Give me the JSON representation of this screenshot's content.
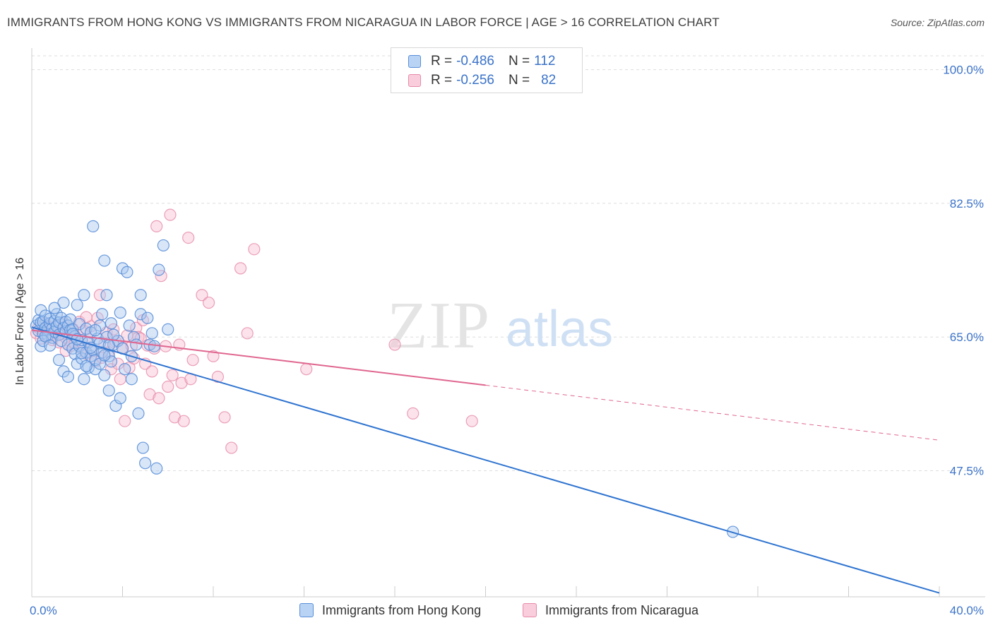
{
  "title": "IMMIGRANTS FROM HONG KONG VS IMMIGRANTS FROM NICARAGUA IN LABOR FORCE | AGE > 16 CORRELATION CHART",
  "source": "Source: ZipAtlas.com",
  "watermark": {
    "zip": "ZIP",
    "atlas": "atlas"
  },
  "colors": {
    "hong_kong_fill": "#a8c8f0",
    "hong_kong_stroke": "#5a8fd8",
    "hong_kong_line": "#2f74d0",
    "nicaragua_fill": "#f7bfd2",
    "nicaragua_stroke": "#e68aa9",
    "nicaragua_line": "#e06690",
    "axis_text": "#3b73c9",
    "grid": "#dddddd"
  },
  "legend": {
    "rows": [
      {
        "r_label": "R = ",
        "r_value": "-0.486",
        "n_label": "N = ",
        "n_value": "112"
      },
      {
        "r_label": "R = ",
        "r_value": "-0.256",
        "n_label": "N = ",
        "n_value": "82"
      }
    ]
  },
  "bottom_legend": {
    "hong_kong": "Immigrants from Hong Kong",
    "nicaragua": "Immigrants from Nicaragua"
  },
  "chart_data": {
    "type": "scatter",
    "title": "IMMIGRANTS FROM HONG KONG VS IMMIGRANTS FROM NICARAGUA IN LABOR FORCE | AGE > 16 CORRELATION CHART",
    "xlabel": "",
    "ylabel": "In Labor Force | Age > 16",
    "xlim": [
      0,
      40
    ],
    "ylim": [
      31,
      102
    ],
    "x_tick_labels": [
      "0.0%",
      "40.0%"
    ],
    "y_ticks": [
      47.5,
      65.0,
      82.5,
      100.0
    ],
    "y_tick_labels": [
      "47.5%",
      "65.0%",
      "82.5%",
      "100.0%"
    ],
    "grid": true,
    "legend_position": "top-center",
    "series": [
      {
        "name": "Immigrants from Hong Kong",
        "R": -0.486,
        "N": 112,
        "trend": {
          "x": [
            0,
            40
          ],
          "y": [
            66.3,
            31.5
          ],
          "dashed_from": null
        },
        "points": [
          [
            0.2,
            66.5
          ],
          [
            0.3,
            67.2
          ],
          [
            0.3,
            65.8
          ],
          [
            0.4,
            66.9
          ],
          [
            0.4,
            68.5
          ],
          [
            0.5,
            67.0
          ],
          [
            0.5,
            65.5
          ],
          [
            0.6,
            66.2
          ],
          [
            0.6,
            67.8
          ],
          [
            0.7,
            66.0
          ],
          [
            0.7,
            65.2
          ],
          [
            0.8,
            66.8
          ],
          [
            0.8,
            67.4
          ],
          [
            0.9,
            66.1
          ],
          [
            0.9,
            64.9
          ],
          [
            1.0,
            67.1
          ],
          [
            1.0,
            65.7
          ],
          [
            1.1,
            66.4
          ],
          [
            1.1,
            68.0
          ],
          [
            1.2,
            65.3
          ],
          [
            1.2,
            66.9
          ],
          [
            1.3,
            67.5
          ],
          [
            1.3,
            64.5
          ],
          [
            1.4,
            66.2
          ],
          [
            1.4,
            69.5
          ],
          [
            1.5,
            65.8
          ],
          [
            1.5,
            67.0
          ],
          [
            1.6,
            66.5
          ],
          [
            1.6,
            64.0
          ],
          [
            1.7,
            65.9
          ],
          [
            1.7,
            67.3
          ],
          [
            1.8,
            63.5
          ],
          [
            1.8,
            66.0
          ],
          [
            1.9,
            62.8
          ],
          [
            1.9,
            65.1
          ],
          [
            2.0,
            69.2
          ],
          [
            2.0,
            61.5
          ],
          [
            2.1,
            63.8
          ],
          [
            2.1,
            66.7
          ],
          [
            2.2,
            62.2
          ],
          [
            2.2,
            64.6
          ],
          [
            2.3,
            70.5
          ],
          [
            2.3,
            59.5
          ],
          [
            2.4,
            63.0
          ],
          [
            2.4,
            66.1
          ],
          [
            2.5,
            61.0
          ],
          [
            2.5,
            64.3
          ],
          [
            2.6,
            62.5
          ],
          [
            2.6,
            65.6
          ],
          [
            2.7,
            79.5
          ],
          [
            2.7,
            63.3
          ],
          [
            2.8,
            60.8
          ],
          [
            2.8,
            62.0
          ],
          [
            2.9,
            64.8
          ],
          [
            3.0,
            61.5
          ],
          [
            3.0,
            66.5
          ],
          [
            3.1,
            68.0
          ],
          [
            3.1,
            63.0
          ],
          [
            3.2,
            75.0
          ],
          [
            3.2,
            60.0
          ],
          [
            3.3,
            70.5
          ],
          [
            3.3,
            65.0
          ],
          [
            3.4,
            62.5
          ],
          [
            3.4,
            58.0
          ],
          [
            3.5,
            66.8
          ],
          [
            3.5,
            61.8
          ],
          [
            3.6,
            64.0
          ],
          [
            3.7,
            56.0
          ],
          [
            3.8,
            64.5
          ],
          [
            3.9,
            57.0
          ],
          [
            3.9,
            68.2
          ],
          [
            4.0,
            74.0
          ],
          [
            4.0,
            63.5
          ],
          [
            4.1,
            60.8
          ],
          [
            4.2,
            73.5
          ],
          [
            4.3,
            66.5
          ],
          [
            4.4,
            59.5
          ],
          [
            4.4,
            62.5
          ],
          [
            4.5,
            65.0
          ],
          [
            4.6,
            64.0
          ],
          [
            4.7,
            55.0
          ],
          [
            4.8,
            68.0
          ],
          [
            4.8,
            70.5
          ],
          [
            4.9,
            50.5
          ],
          [
            5.0,
            48.5
          ],
          [
            5.1,
            67.5
          ],
          [
            5.2,
            64.0
          ],
          [
            5.3,
            65.5
          ],
          [
            5.4,
            63.8
          ],
          [
            5.5,
            47.8
          ],
          [
            5.6,
            73.8
          ],
          [
            5.8,
            77.0
          ],
          [
            6.0,
            66.0
          ],
          [
            0.4,
            63.8
          ],
          [
            0.5,
            64.5
          ],
          [
            0.6,
            65.1
          ],
          [
            0.8,
            63.9
          ],
          [
            1.0,
            68.8
          ],
          [
            1.2,
            62.0
          ],
          [
            1.4,
            60.5
          ],
          [
            1.6,
            59.8
          ],
          [
            1.8,
            65.4
          ],
          [
            2.0,
            64.7
          ],
          [
            2.2,
            62.9
          ],
          [
            2.4,
            61.2
          ],
          [
            2.6,
            63.6
          ],
          [
            2.8,
            65.9
          ],
          [
            3.0,
            64.2
          ],
          [
            3.2,
            62.6
          ],
          [
            3.4,
            63.9
          ],
          [
            3.6,
            65.3
          ],
          [
            30.9,
            39.5
          ]
        ]
      },
      {
        "name": "Immigrants from Nicaragua",
        "R": -0.256,
        "N": 82,
        "trend": {
          "x": [
            0,
            40
          ],
          "y": [
            65.9,
            51.5
          ],
          "dashed_from": 20
        },
        "points": [
          [
            0.2,
            65.5
          ],
          [
            0.3,
            66.2
          ],
          [
            0.4,
            64.8
          ],
          [
            0.5,
            65.9
          ],
          [
            0.6,
            66.8
          ],
          [
            0.7,
            65.0
          ],
          [
            0.8,
            66.3
          ],
          [
            0.9,
            64.6
          ],
          [
            1.0,
            65.7
          ],
          [
            1.1,
            66.5
          ],
          [
            1.2,
            64.3
          ],
          [
            1.3,
            65.4
          ],
          [
            1.4,
            66.9
          ],
          [
            1.5,
            64.9
          ],
          [
            1.6,
            65.6
          ],
          [
            1.7,
            63.8
          ],
          [
            1.8,
            66.1
          ],
          [
            1.9,
            64.2
          ],
          [
            2.0,
            65.3
          ],
          [
            2.1,
            67.0
          ],
          [
            2.2,
            63.5
          ],
          [
            2.3,
            65.8
          ],
          [
            2.4,
            62.8
          ],
          [
            2.5,
            64.7
          ],
          [
            2.6,
            66.4
          ],
          [
            2.7,
            63.2
          ],
          [
            2.8,
            61.8
          ],
          [
            2.9,
            67.5
          ],
          [
            3.0,
            70.5
          ],
          [
            3.1,
            62.3
          ],
          [
            3.2,
            64.1
          ],
          [
            3.3,
            65.6
          ],
          [
            3.4,
            63.0
          ],
          [
            3.5,
            60.8
          ],
          [
            3.6,
            66.0
          ],
          [
            3.7,
            64.4
          ],
          [
            3.8,
            61.5
          ],
          [
            3.9,
            59.5
          ],
          [
            4.0,
            63.6
          ],
          [
            4.1,
            54.0
          ],
          [
            4.2,
            65.2
          ],
          [
            4.3,
            61.0
          ],
          [
            4.4,
            63.8
          ],
          [
            4.5,
            62.2
          ],
          [
            4.6,
            66.2
          ],
          [
            4.7,
            65.0
          ],
          [
            4.8,
            64.8
          ],
          [
            4.9,
            67.2
          ],
          [
            5.0,
            61.5
          ],
          [
            5.1,
            63.9
          ],
          [
            5.2,
            57.5
          ],
          [
            5.3,
            60.5
          ],
          [
            5.4,
            63.5
          ],
          [
            5.5,
            79.5
          ],
          [
            5.6,
            57.0
          ],
          [
            5.7,
            73.0
          ],
          [
            5.9,
            63.8
          ],
          [
            6.0,
            58.5
          ],
          [
            6.1,
            81.0
          ],
          [
            6.2,
            60.0
          ],
          [
            6.3,
            54.5
          ],
          [
            6.5,
            64.0
          ],
          [
            6.6,
            59.0
          ],
          [
            6.7,
            54.0
          ],
          [
            6.9,
            78.0
          ],
          [
            7.0,
            59.5
          ],
          [
            7.1,
            62.0
          ],
          [
            7.5,
            70.5
          ],
          [
            7.8,
            69.5
          ],
          [
            8.0,
            62.5
          ],
          [
            8.2,
            59.8
          ],
          [
            8.5,
            54.5
          ],
          [
            8.8,
            50.5
          ],
          [
            9.2,
            74.0
          ],
          [
            9.5,
            65.5
          ],
          [
            9.8,
            76.5
          ],
          [
            12.1,
            60.8
          ],
          [
            16.0,
            64.0
          ],
          [
            16.8,
            55.0
          ],
          [
            19.4,
            54.0
          ],
          [
            1.5,
            63.2
          ],
          [
            2.4,
            67.6
          ]
        ]
      }
    ]
  }
}
